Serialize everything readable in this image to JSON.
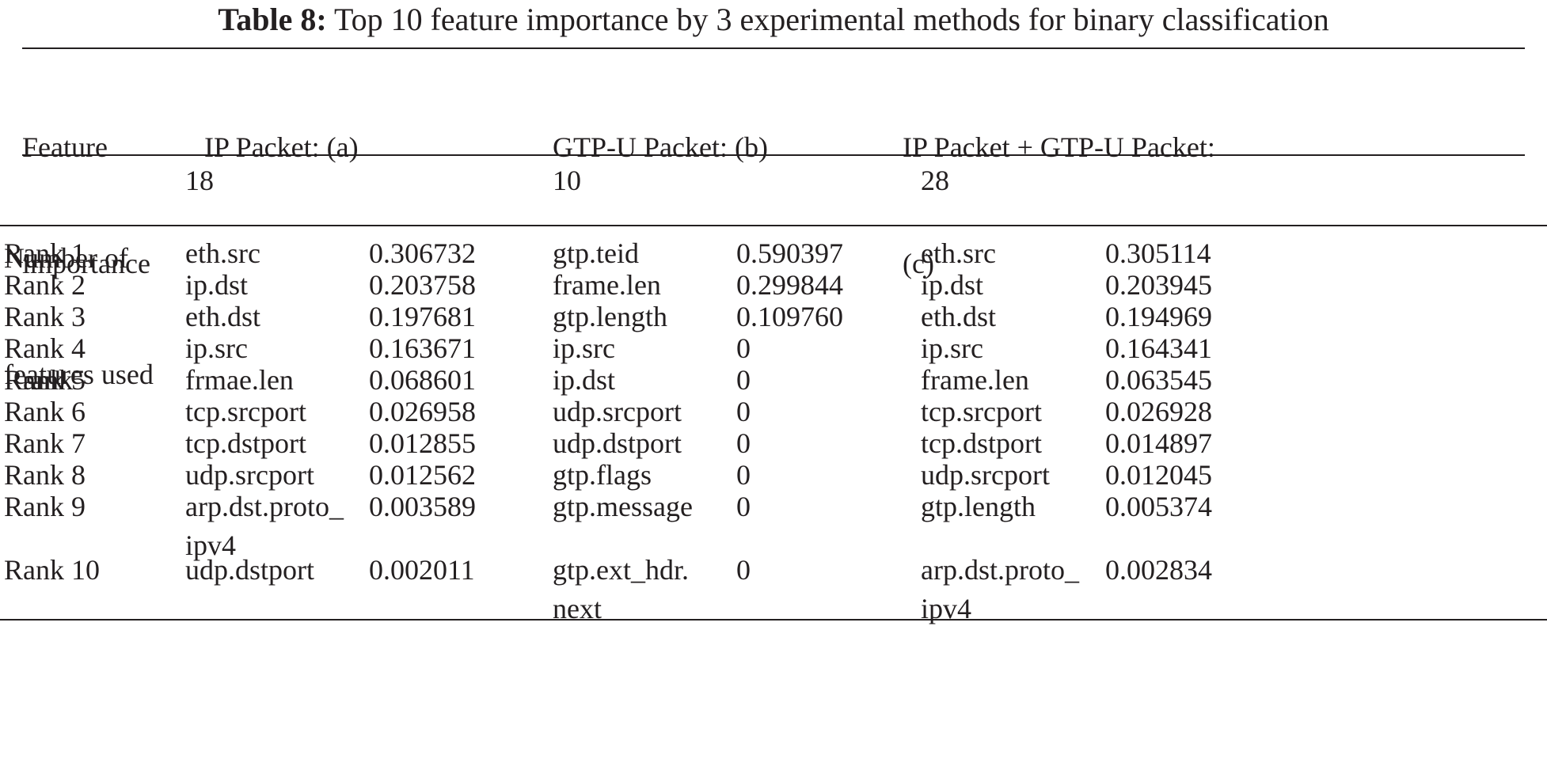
{
  "caption": {
    "label": "Table 8:",
    "text": "Top 10 feature importance by 3 experimental methods for binary classification"
  },
  "header": {
    "rank_heading": [
      "Feature",
      "importance",
      "rank"
    ],
    "groups": [
      [
        "IP Packet: (a)"
      ],
      [
        "GTP-U Packet: (b)"
      ],
      [
        "IP Packet + GTP-U Packet:",
        "(c)"
      ]
    ]
  },
  "features_used": {
    "label": [
      "Number of",
      "features used"
    ],
    "values": [
      "18",
      "10",
      "28"
    ]
  },
  "rows": [
    {
      "rank": "Rank 1",
      "a": [
        "eth.src"
      ],
      "a_val": "0.306732",
      "b": [
        "gtp.teid"
      ],
      "b_val": "0.590397",
      "c": [
        "eth.src"
      ],
      "c_val": "0.305114"
    },
    {
      "rank": "Rank 2",
      "a": [
        "ip.dst"
      ],
      "a_val": "0.203758",
      "b": [
        "frame.len"
      ],
      "b_val": "0.299844",
      "c": [
        "ip.dst"
      ],
      "c_val": "0.203945"
    },
    {
      "rank": "Rank 3",
      "a": [
        "eth.dst"
      ],
      "a_val": "0.197681",
      "b": [
        "gtp.length"
      ],
      "b_val": "0.109760",
      "c": [
        "eth.dst"
      ],
      "c_val": "0.194969"
    },
    {
      "rank": "Rank 4",
      "a": [
        "ip.src"
      ],
      "a_val": "0.163671",
      "b": [
        "ip.src"
      ],
      "b_val": "0",
      "c": [
        "ip.src"
      ],
      "c_val": "0.164341"
    },
    {
      "rank": "Rank 5",
      "a": [
        "frmae.len"
      ],
      "a_val": "0.068601",
      "b": [
        "ip.dst"
      ],
      "b_val": "0",
      "c": [
        "frame.len"
      ],
      "c_val": "0.063545"
    },
    {
      "rank": "Rank 6",
      "a": [
        "tcp.srcport"
      ],
      "a_val": "0.026958",
      "b": [
        "udp.srcport"
      ],
      "b_val": "0",
      "c": [
        "tcp.srcport"
      ],
      "c_val": "0.026928"
    },
    {
      "rank": "Rank 7",
      "a": [
        "tcp.dstport"
      ],
      "a_val": "0.012855",
      "b": [
        "udp.dstport"
      ],
      "b_val": "0",
      "c": [
        "tcp.dstport"
      ],
      "c_val": "0.014897"
    },
    {
      "rank": "Rank 8",
      "a": [
        "udp.srcport"
      ],
      "a_val": "0.012562",
      "b": [
        "gtp.flags"
      ],
      "b_val": "0",
      "c": [
        "udp.srcport"
      ],
      "c_val": "0.012045"
    },
    {
      "rank": "Rank 9",
      "a": [
        "arp.dst.proto_",
        "ipv4"
      ],
      "a_val": "0.003589",
      "b": [
        "gtp.message"
      ],
      "b_val": "0",
      "c": [
        "gtp.length"
      ],
      "c_val": "0.005374"
    },
    {
      "rank": "Rank 10",
      "a": [
        "udp.dstport"
      ],
      "a_val": "0.002011",
      "b": [
        "gtp.ext_hdr.",
        "next"
      ],
      "b_val": "0",
      "c": [
        "arp.dst.proto_",
        "ipv4"
      ],
      "c_val": "0.002834"
    }
  ]
}
